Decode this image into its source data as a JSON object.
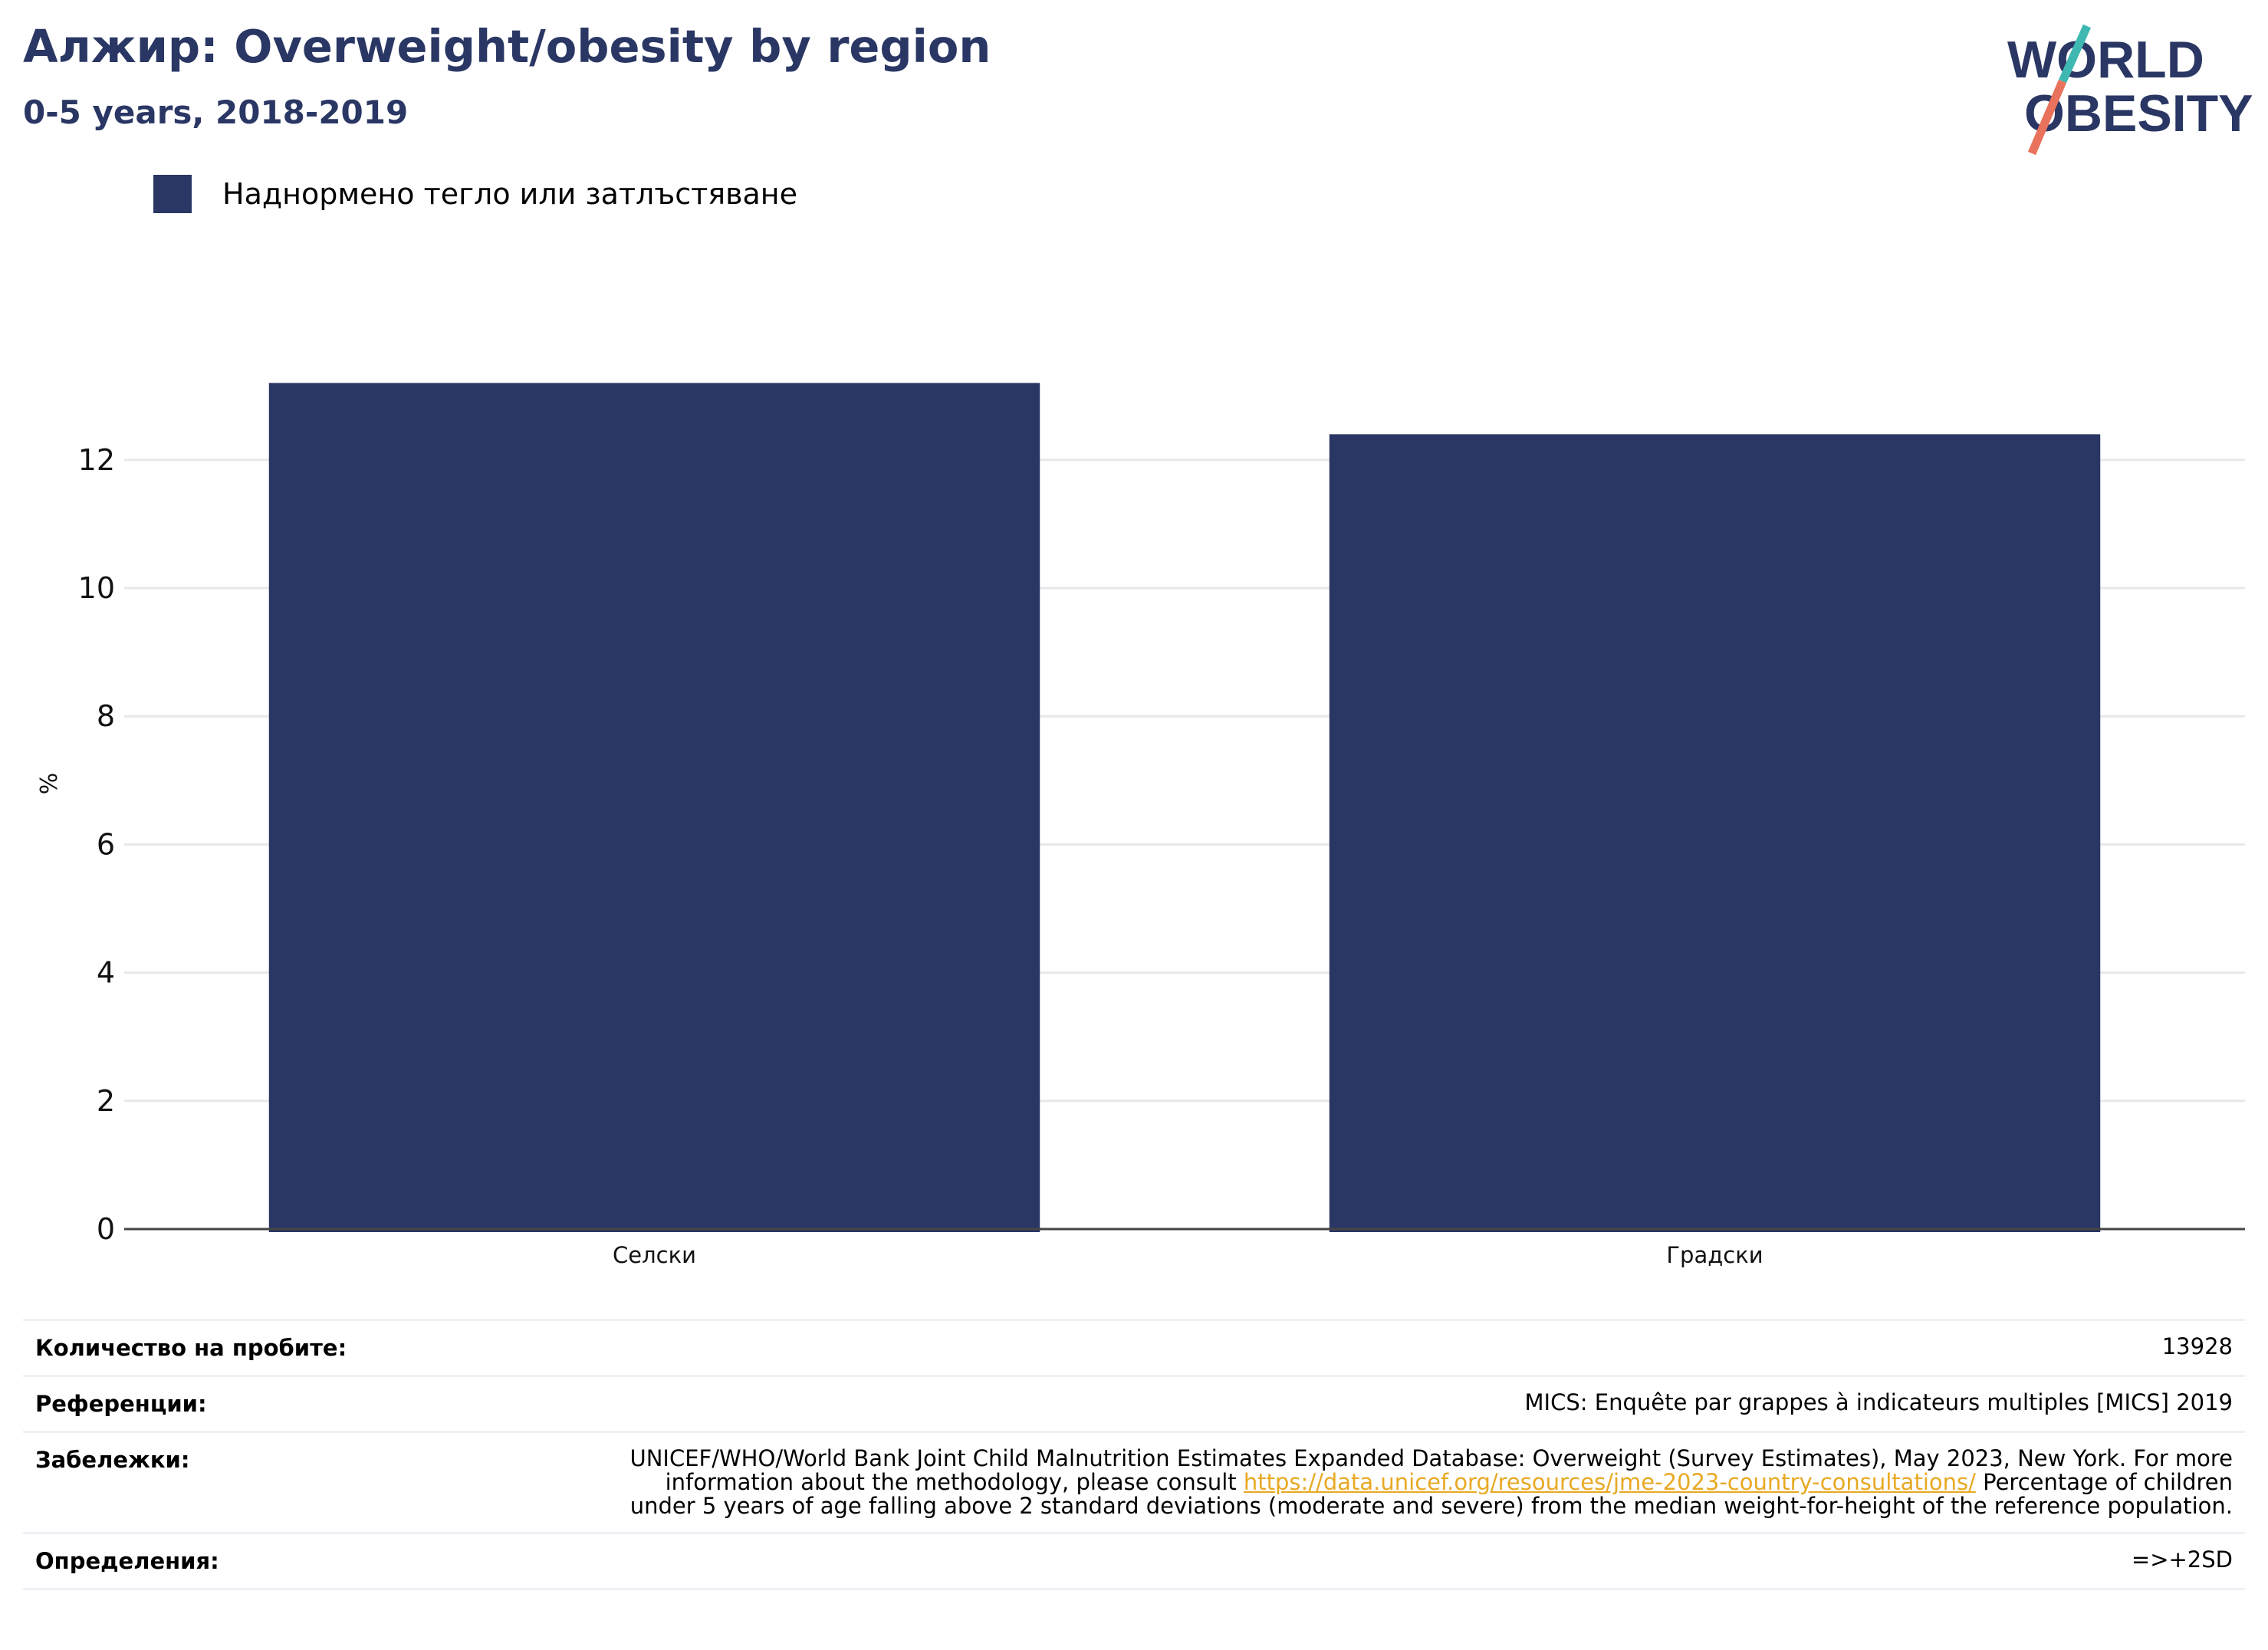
{
  "header": {
    "title": "Алжир: Overweight/obesity by region",
    "subtitle": "0-5 years, 2018-2019"
  },
  "logo": {
    "line1": "WORLD",
    "line2": "OBESITY",
    "colors": {
      "text": "#2a3764",
      "slash_top": "#3fb8b2",
      "slash_bottom": "#e8725c"
    }
  },
  "legend": {
    "label": "Наднормено тегло или затлъстяване",
    "color": "#2a3764"
  },
  "chart_data": {
    "type": "bar",
    "categories": [
      "Селски",
      "Градски"
    ],
    "series": [
      {
        "name": "Наднормено тегло или затлъстяване",
        "values": [
          13.2,
          12.4
        ],
        "color": "#2a3764"
      }
    ],
    "ylabel": "%",
    "xlabel": "",
    "ylim": [
      0,
      13.5
    ],
    "yticks": [
      0,
      2,
      4,
      6,
      8,
      10,
      12
    ],
    "grid": true,
    "legend_position": "top-left"
  },
  "notes": {
    "sample_label": "Количество на пробите:",
    "sample_value": "13928",
    "references_label": "Референции:",
    "references_value": "MICS: Enquête par grappes à indicateurs multiples [MICS] 2019",
    "remarks_label": "Забележки:",
    "remarks_text_before": "UNICEF/WHO/World Bank Joint Child Malnutrition Estimates Expanded Database: Overweight (Survey Estimates), May 2023, New York. For more information about the methodology, please consult",
    "remarks_link": "https://data.unicef.org/resources/jme-2023-country-consultations/",
    "remarks_text_after": "Percentage of children under 5 years of age falling above 2 standard deviations (moderate and severe) from the median weight-for-height of the reference population.",
    "definitions_label": "Определения:",
    "definitions_value": "=>+2SD"
  }
}
